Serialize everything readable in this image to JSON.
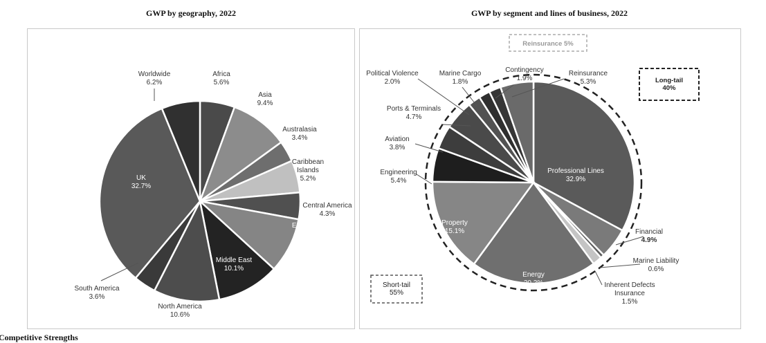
{
  "titles": {
    "left": "GWP by geography, 2022",
    "right": "GWP by segment and lines of business, 2022"
  },
  "bottom_caption": "Competitive Strengths",
  "chart_data": [
    {
      "type": "pie",
      "title": "GWP by geography, 2022",
      "unit": "%",
      "slices": [
        {
          "label": "Africa",
          "value": 5.6,
          "color": "#4a4a4a"
        },
        {
          "label": "Asia",
          "value": 9.4,
          "color": "#8c8c8c"
        },
        {
          "label": "Australasia",
          "value": 3.4,
          "color": "#6e6e6e"
        },
        {
          "label": "Caribbean Islands",
          "value": 5.2,
          "color": "#c0c0c0"
        },
        {
          "label": "Central America",
          "value": 4.3,
          "color": "#505050"
        },
        {
          "label": "Europe",
          "value": 8.9,
          "color": "#858585"
        },
        {
          "label": "Middle East",
          "value": 10.1,
          "color": "#232323"
        },
        {
          "label": "North America",
          "value": 10.6,
          "color": "#4d4d4d"
        },
        {
          "label": "South America",
          "value": 3.6,
          "color": "#3a3a3a"
        },
        {
          "label": "UK",
          "value": 32.7,
          "color": "#595959"
        },
        {
          "label": "Worldwide",
          "value": 6.2,
          "color": "#303030"
        }
      ]
    },
    {
      "type": "pie",
      "title": "GWP by segment and lines of business, 2022",
      "unit": "%",
      "slices": [
        {
          "label": "Professional Lines",
          "value": 32.9,
          "color": "#5a5a5a"
        },
        {
          "label": "Financial",
          "value": 4.9,
          "color": "#7a7a7a"
        },
        {
          "label": "Marine Liability",
          "value": 0.6,
          "color": "#5e5e5e"
        },
        {
          "label": "Inherent Defects Insurance",
          "value": 1.5,
          "color": "#c4c4c4"
        },
        {
          "label": "Energy",
          "value": 20.2,
          "color": "#6f6f6f"
        },
        {
          "label": "Property",
          "value": 15.1,
          "color": "#868686"
        },
        {
          "label": "Engineering",
          "value": 5.4,
          "color": "#1e1e1e"
        },
        {
          "label": "Aviation",
          "value": 3.8,
          "color": "#3d3d3d"
        },
        {
          "label": "Ports & Terminals",
          "value": 4.7,
          "color": "#4a4a4a"
        },
        {
          "label": "Political Violence",
          "value": 2.0,
          "color": "#525252"
        },
        {
          "label": "Marine Cargo",
          "value": 1.8,
          "color": "#2f2f2f"
        },
        {
          "label": "Contingency",
          "value": 1.9,
          "color": "#363636"
        },
        {
          "label": "Reinsurance",
          "value": 5.3,
          "color": "#6a6a6a"
        }
      ],
      "annotations": {
        "reinsurance_box": "Reinsurance 5%",
        "long_tail": [
          "Long-tail",
          "40%"
        ],
        "short_tail": [
          "Short-tail",
          "55%"
        ]
      }
    }
  ]
}
